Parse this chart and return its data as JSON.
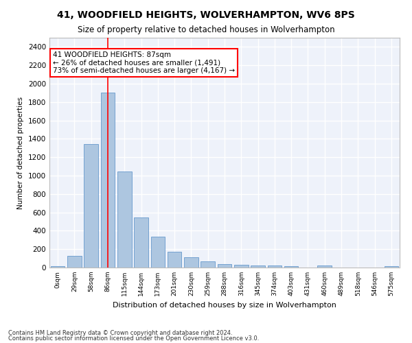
{
  "title": "41, WOODFIELD HEIGHTS, WOLVERHAMPTON, WV6 8PS",
  "subtitle": "Size of property relative to detached houses in Wolverhampton",
  "xlabel": "Distribution of detached houses by size in Wolverhampton",
  "ylabel": "Number of detached properties",
  "bar_color": "#adc6e0",
  "bar_edge_color": "#6699cc",
  "background_color": "#eef2fa",
  "grid_color": "#ffffff",
  "categories": [
    "0sqm",
    "29sqm",
    "58sqm",
    "86sqm",
    "115sqm",
    "144sqm",
    "173sqm",
    "201sqm",
    "230sqm",
    "259sqm",
    "288sqm",
    "316sqm",
    "345sqm",
    "374sqm",
    "403sqm",
    "431sqm",
    "460sqm",
    "489sqm",
    "518sqm",
    "546sqm",
    "575sqm"
  ],
  "values": [
    18,
    125,
    1340,
    1900,
    1045,
    545,
    335,
    170,
    110,
    65,
    40,
    30,
    25,
    20,
    12,
    0,
    25,
    0,
    0,
    0,
    18
  ],
  "ylim": [
    0,
    2500
  ],
  "yticks": [
    0,
    200,
    400,
    600,
    800,
    1000,
    1200,
    1400,
    1600,
    1800,
    2000,
    2200,
    2400
  ],
  "marker_bin_index": 3,
  "annotation_title": "41 WOODFIELD HEIGHTS: 87sqm",
  "annotation_line1": "← 26% of detached houses are smaller (1,491)",
  "annotation_line2": "73% of semi-detached houses are larger (4,167) →",
  "footer1": "Contains HM Land Registry data © Crown copyright and database right 2024.",
  "footer2": "Contains public sector information licensed under the Open Government Licence v3.0."
}
